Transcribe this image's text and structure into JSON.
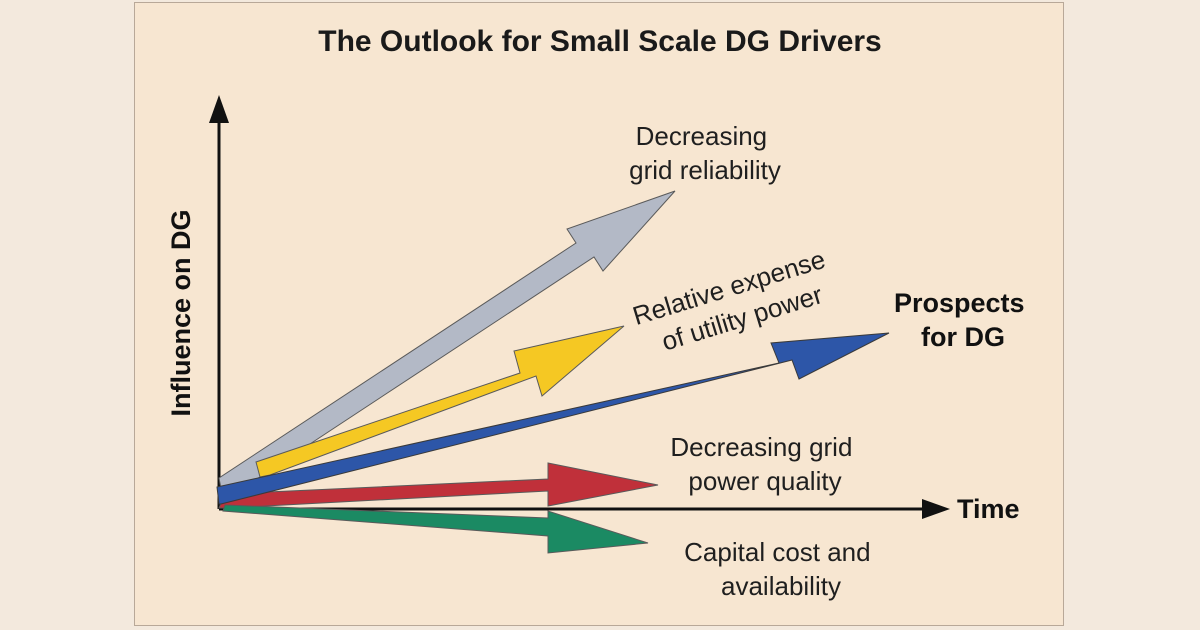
{
  "title": "The Outlook for Small Scale DG Drivers",
  "axes": {
    "y_label": "Influence on DG",
    "x_label": "Time"
  },
  "drivers": [
    {
      "id": "decreasing-grid-reliability",
      "lines": [
        "Decreasing",
        "grid reliability"
      ],
      "color": "#b3b9c6"
    },
    {
      "id": "relative-expense",
      "lines": [
        "Relative expense",
        "of utility power"
      ],
      "color": "#f5c823"
    },
    {
      "id": "prospects-for-dg",
      "lines": [
        "Prospects",
        "for DG"
      ],
      "color": "#2d56a8"
    },
    {
      "id": "decreasing-grid-power-quality",
      "lines": [
        "Decreasing grid",
        "power quality"
      ],
      "color": "#c0303a"
    },
    {
      "id": "capital-cost",
      "lines": [
        "Capital cost and",
        "availability"
      ],
      "color": "#1b8a63"
    }
  ]
}
